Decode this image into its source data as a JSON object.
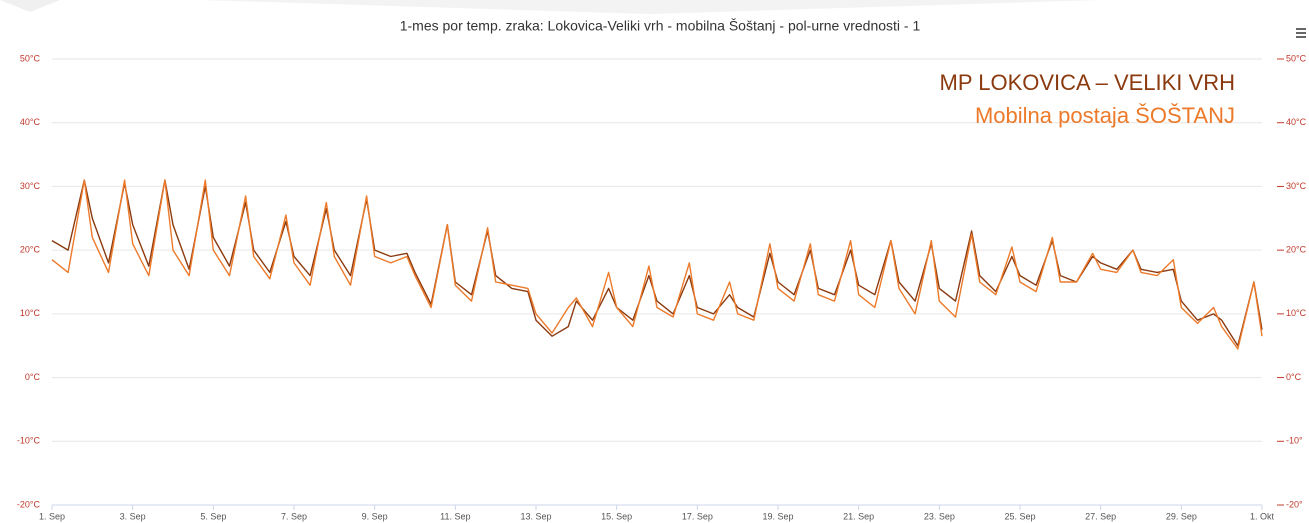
{
  "chart_data": {
    "type": "line",
    "title": "1-mes por temp. zraka: Lokovica-Veliki vrh - mobilna Šoštanj - pol-urne vrednosti - 1",
    "x": [
      0,
      0.4,
      0.8,
      1,
      1.4,
      1.8,
      2,
      2.4,
      2.8,
      3,
      3.4,
      3.8,
      4,
      4.4,
      4.8,
      5,
      5.4,
      5.8,
      6,
      6.4,
      6.8,
      7,
      7.4,
      7.8,
      8,
      8.4,
      8.8,
      9,
      9.4,
      9.8,
      10,
      10.4,
      10.8,
      11,
      11.4,
      11.8,
      12,
      12.4,
      12.8,
      13,
      13.4,
      13.8,
      14,
      14.4,
      14.8,
      15,
      15.4,
      15.8,
      16,
      16.4,
      16.8,
      17,
      17.4,
      17.8,
      18,
      18.4,
      18.8,
      19,
      19.4,
      19.8,
      20,
      20.4,
      20.8,
      21,
      21.4,
      21.8,
      22,
      22.4,
      22.8,
      23,
      23.4,
      23.8,
      24,
      24.4,
      24.8,
      25,
      25.4,
      25.8,
      26,
      26.4,
      26.8,
      27,
      27.4,
      27.8,
      28,
      28.4,
      28.8,
      29,
      29.4,
      29.8,
      30
    ],
    "series": [
      {
        "name": "MP LOKOVICA – VELIKI VRH",
        "color": "#8b3a0f",
        "values": [
          21.5,
          20,
          31,
          25,
          18,
          30.5,
          24,
          17.5,
          31,
          24,
          17,
          30,
          22,
          17.5,
          27.5,
          20,
          16.5,
          24.5,
          19,
          16,
          26.5,
          20,
          16,
          28,
          20,
          19,
          19.5,
          16.5,
          11.5,
          24,
          15,
          13,
          23,
          16,
          14,
          13.5,
          9,
          6.5,
          8,
          12,
          9,
          14,
          11,
          9,
          16,
          12,
          10,
          16,
          11,
          10,
          13,
          11,
          9.5,
          19.5,
          15,
          13,
          20,
          14,
          13,
          20,
          14.5,
          13,
          21.5,
          15,
          12,
          21,
          14,
          12,
          23,
          16,
          13.5,
          19,
          16,
          14.5,
          21.5,
          16,
          15,
          19,
          18,
          17,
          20,
          17,
          16.5,
          17,
          12,
          9,
          10,
          9,
          5,
          15,
          7.5
        ]
      },
      {
        "name": "Mobilna postaja ŠOŠTANJ",
        "color": "#ec7a2a",
        "values": [
          18.5,
          16.5,
          31,
          22,
          16.5,
          31,
          21,
          16,
          31,
          20,
          16,
          31,
          20,
          16,
          28.5,
          19,
          15.5,
          25.5,
          18,
          14.5,
          27.5,
          19,
          14.5,
          28.5,
          19,
          18,
          19,
          16,
          11,
          24,
          14.5,
          12,
          23.5,
          15,
          14.5,
          14,
          10,
          7,
          11,
          12.5,
          8,
          16.5,
          11,
          8,
          17.5,
          11,
          9.5,
          18,
          10,
          9,
          15,
          10,
          9,
          21,
          14,
          12,
          21,
          13,
          12,
          21.5,
          13,
          11,
          21.5,
          14,
          10,
          21.5,
          12,
          9.5,
          22.5,
          15,
          13,
          20.5,
          15,
          13.5,
          22,
          15,
          15,
          19.5,
          17,
          16.5,
          20,
          16.5,
          16,
          18.5,
          11,
          8.5,
          11,
          8,
          4.5,
          15,
          6.5
        ]
      }
    ],
    "xlim": [
      0,
      30
    ],
    "xticks": [
      {
        "value": 0,
        "label": "1. Sep"
      },
      {
        "value": 2,
        "label": "3. Sep"
      },
      {
        "value": 4,
        "label": "5. Sep"
      },
      {
        "value": 6,
        "label": "7. Sep"
      },
      {
        "value": 8,
        "label": "9. Sep"
      },
      {
        "value": 10,
        "label": "11. Sep"
      },
      {
        "value": 12,
        "label": "13. Sep"
      },
      {
        "value": 14,
        "label": "15. Sep"
      },
      {
        "value": 16,
        "label": "17. Sep"
      },
      {
        "value": 18,
        "label": "19. Sep"
      },
      {
        "value": 20,
        "label": "21. Sep"
      },
      {
        "value": 22,
        "label": "23. Sep"
      },
      {
        "value": 24,
        "label": "25. Sep"
      },
      {
        "value": 26,
        "label": "27. Sep"
      },
      {
        "value": 28,
        "label": "29. Sep"
      },
      {
        "value": 30,
        "label": "1. Okt"
      }
    ],
    "ylim": [
      -20,
      50
    ],
    "yticks": [
      {
        "value": -20,
        "label": "-20°C"
      },
      {
        "value": -10,
        "label": "-10°C"
      },
      {
        "value": 0,
        "label": "0°C"
      },
      {
        "value": 10,
        "label": "10°C"
      },
      {
        "value": 20,
        "label": "20°C"
      },
      {
        "value": 30,
        "label": "30°C"
      },
      {
        "value": 40,
        "label": "40°C"
      },
      {
        "value": 50,
        "label": "50°C"
      }
    ],
    "y2lim": [
      -20,
      50
    ],
    "y2ticks": [
      {
        "value": -20,
        "label": "-20°"
      },
      {
        "value": -10,
        "label": "-10°"
      },
      {
        "value": 0,
        "label": "0°C"
      },
      {
        "value": 10,
        "label": "10°C"
      },
      {
        "value": 20,
        "label": "20°C"
      },
      {
        "value": 30,
        "label": "30°C"
      },
      {
        "value": 40,
        "label": "40°C"
      },
      {
        "value": 50,
        "label": "50°C"
      }
    ],
    "grid": true
  }
}
